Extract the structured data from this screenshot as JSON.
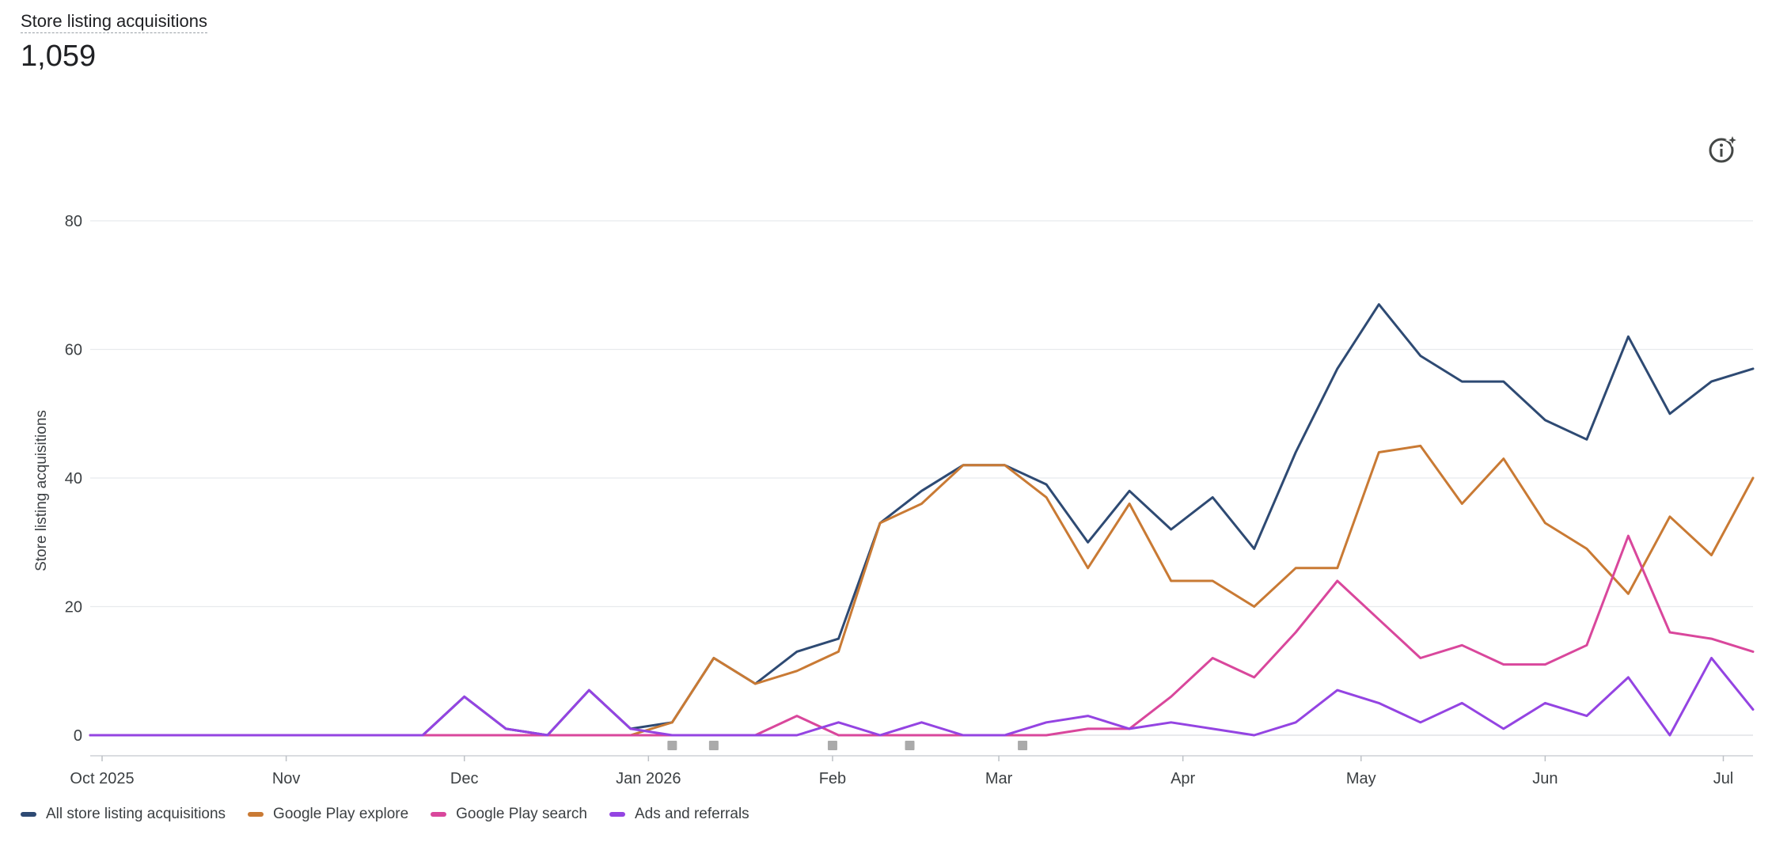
{
  "header": {
    "title": "Store listing acquisitions",
    "total": "1,059"
  },
  "info_button": {
    "icon": "insights-info-icon"
  },
  "chart_data": {
    "type": "line",
    "ylabel": "Store listing acquisitions",
    "ylim": [
      0,
      80
    ],
    "yticks": [
      0,
      20,
      40,
      60,
      80
    ],
    "grid": true,
    "legend_position": "bottom-left",
    "x_start": "2025-09-29",
    "x_end": "2026-07-06",
    "x_tick_labels": [
      {
        "date": "2025-10-01",
        "label": "Oct 2025"
      },
      {
        "date": "2025-11-01",
        "label": "Nov"
      },
      {
        "date": "2025-12-01",
        "label": "Dec"
      },
      {
        "date": "2026-01-01",
        "label": "Jan 2026"
      },
      {
        "date": "2026-02-01",
        "label": "Feb"
      },
      {
        "date": "2026-03-01",
        "label": "Mar"
      },
      {
        "date": "2026-04-01",
        "label": "Apr"
      },
      {
        "date": "2026-05-01",
        "label": "May"
      },
      {
        "date": "2026-06-01",
        "label": "Jun"
      },
      {
        "date": "2026-07-01",
        "label": "Jul"
      }
    ],
    "x": [
      "2025-09-29",
      "2025-10-06",
      "2025-10-13",
      "2025-10-20",
      "2025-10-27",
      "2025-11-03",
      "2025-11-10",
      "2025-11-17",
      "2025-11-24",
      "2025-12-01",
      "2025-12-08",
      "2025-12-15",
      "2025-12-22",
      "2025-12-29",
      "2026-01-05",
      "2026-01-12",
      "2026-01-19",
      "2026-01-26",
      "2026-02-02",
      "2026-02-09",
      "2026-02-16",
      "2026-02-23",
      "2026-03-02",
      "2026-03-09",
      "2026-03-16",
      "2026-03-23",
      "2026-03-30",
      "2026-04-06",
      "2026-04-13",
      "2026-04-20",
      "2026-04-27",
      "2026-05-04",
      "2026-05-11",
      "2026-05-18",
      "2026-05-25",
      "2026-06-01",
      "2026-06-08",
      "2026-06-15",
      "2026-06-22",
      "2026-06-29",
      "2026-07-06"
    ],
    "series": [
      {
        "name": "All store listing acquisitions",
        "color": "#2e4a73",
        "values": [
          0,
          0,
          0,
          0,
          0,
          0,
          0,
          0,
          0,
          6,
          1,
          0,
          7,
          1,
          2,
          12,
          8,
          13,
          15,
          33,
          38,
          42,
          42,
          39,
          30,
          38,
          32,
          37,
          29,
          44,
          57,
          67,
          59,
          55,
          55,
          49,
          46,
          62,
          50,
          55,
          57
        ]
      },
      {
        "name": "Google Play explore",
        "color": "#c97a34",
        "values": [
          0,
          0,
          0,
          0,
          0,
          0,
          0,
          0,
          0,
          0,
          0,
          0,
          0,
          0,
          2,
          12,
          8,
          10,
          13,
          33,
          36,
          42,
          42,
          37,
          26,
          36,
          24,
          24,
          20,
          26,
          26,
          44,
          45,
          36,
          43,
          33,
          29,
          22,
          34,
          28,
          40
        ]
      },
      {
        "name": "Google Play search",
        "color": "#d9479c",
        "values": [
          0,
          0,
          0,
          0,
          0,
          0,
          0,
          0,
          0,
          0,
          0,
          0,
          0,
          0,
          0,
          0,
          0,
          3,
          0,
          0,
          0,
          0,
          0,
          0,
          1,
          1,
          6,
          12,
          9,
          16,
          24,
          18,
          12,
          14,
          11,
          11,
          14,
          31,
          16,
          15,
          13
        ]
      },
      {
        "name": "Ads and referrals",
        "color": "#9444e2",
        "values": [
          0,
          0,
          0,
          0,
          0,
          0,
          0,
          0,
          0,
          6,
          1,
          0,
          7,
          1,
          0,
          0,
          0,
          0,
          2,
          0,
          2,
          0,
          0,
          2,
          3,
          1,
          2,
          1,
          0,
          2,
          7,
          5,
          2,
          5,
          1,
          5,
          3,
          9,
          0,
          12,
          4
        ]
      }
    ],
    "markers": [
      "2026-01-05",
      "2026-01-12",
      "2026-02-01",
      "2026-02-14",
      "2026-03-05"
    ]
  }
}
